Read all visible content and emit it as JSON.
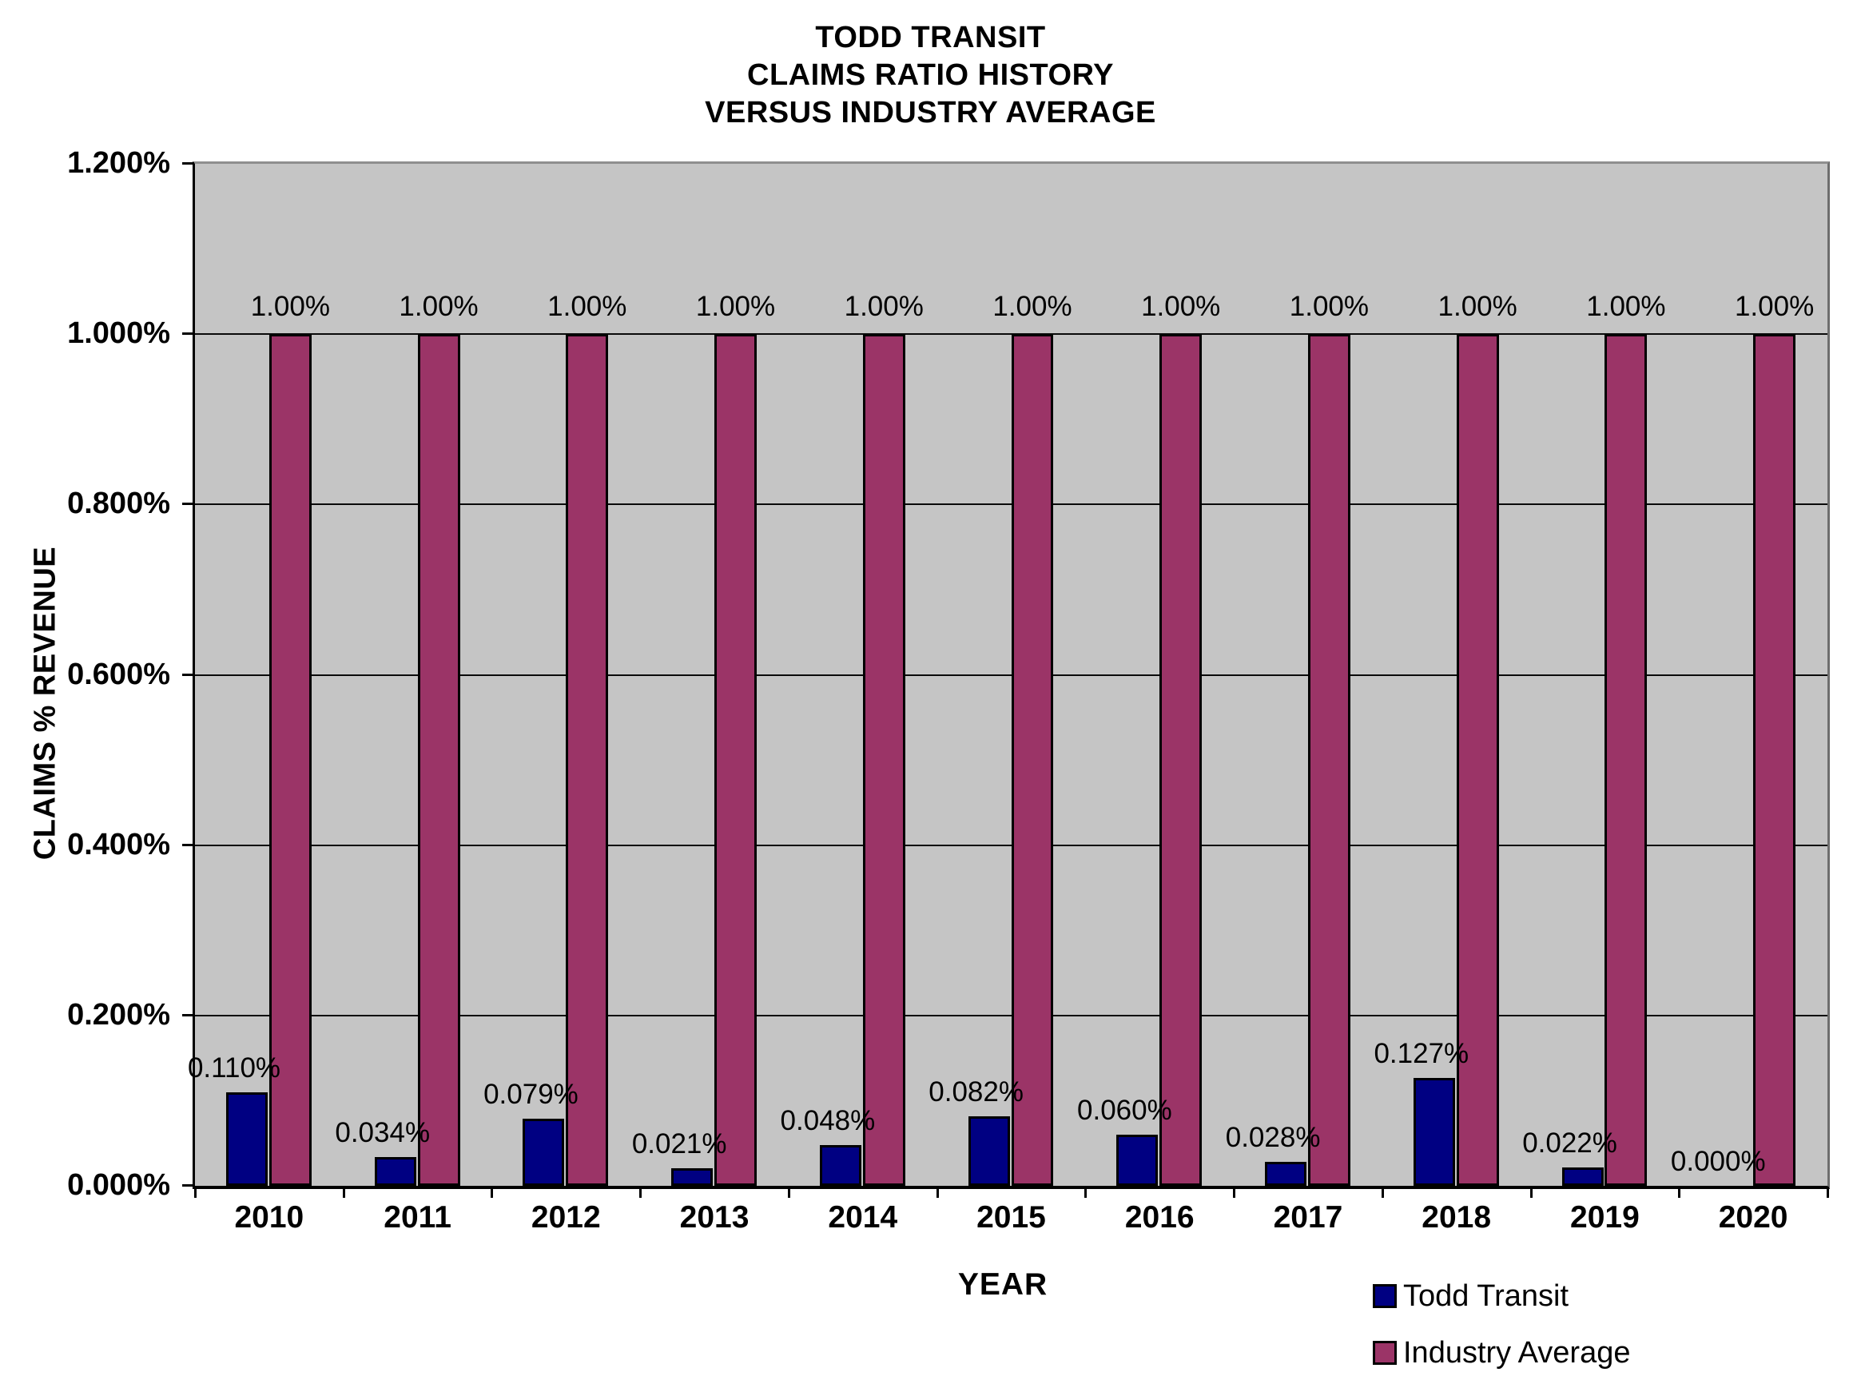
{
  "chart_data": {
    "type": "bar",
    "title": "TODD TRANSIT CLAIMS RATIO HISTORY VERSUS INDUSTRY AVERAGE",
    "title_lines": [
      "TODD TRANSIT",
      "CLAIMS RATIO HISTORY",
      "VERSUS INDUSTRY AVERAGE"
    ],
    "xlabel": "YEAR",
    "ylabel": "CLAIMS % REVENUE",
    "categories": [
      "2010",
      "2011",
      "2012",
      "2013",
      "2014",
      "2015",
      "2016",
      "2017",
      "2018",
      "2019",
      "2020"
    ],
    "series": [
      {
        "name": "Todd Transit",
        "color": "#000082",
        "values": [
          0.11,
          0.034,
          0.079,
          0.021,
          0.048,
          0.082,
          0.06,
          0.028,
          0.127,
          0.022,
          0.0
        ],
        "labels": [
          "0.110%",
          "0.034%",
          "0.079%",
          "0.021%",
          "0.048%",
          "0.082%",
          "0.060%",
          "0.028%",
          "0.127%",
          "0.022%",
          "0.000%"
        ]
      },
      {
        "name": "Industry Average",
        "color": "#9B3467",
        "values": [
          1.0,
          1.0,
          1.0,
          1.0,
          1.0,
          1.0,
          1.0,
          1.0,
          1.0,
          1.0,
          1.0
        ],
        "labels": [
          "1.00%",
          "1.00%",
          "1.00%",
          "1.00%",
          "1.00%",
          "1.00%",
          "1.00%",
          "1.00%",
          "1.00%",
          "1.00%",
          "1.00%"
        ]
      }
    ],
    "ylim": [
      0,
      1.2
    ],
    "ytick_step": 0.2,
    "ytick_labels": [
      "0.000%",
      "0.200%",
      "0.400%",
      "0.600%",
      "0.800%",
      "1.000%",
      "1.200%"
    ],
    "grid": true,
    "plot_bg": "#C5C5C5",
    "legend_position": "bottom-right"
  },
  "legend": {
    "items": [
      {
        "label": "Todd Transit",
        "color": "#000082"
      },
      {
        "label": "Industry Average",
        "color": "#9B3467"
      }
    ]
  }
}
